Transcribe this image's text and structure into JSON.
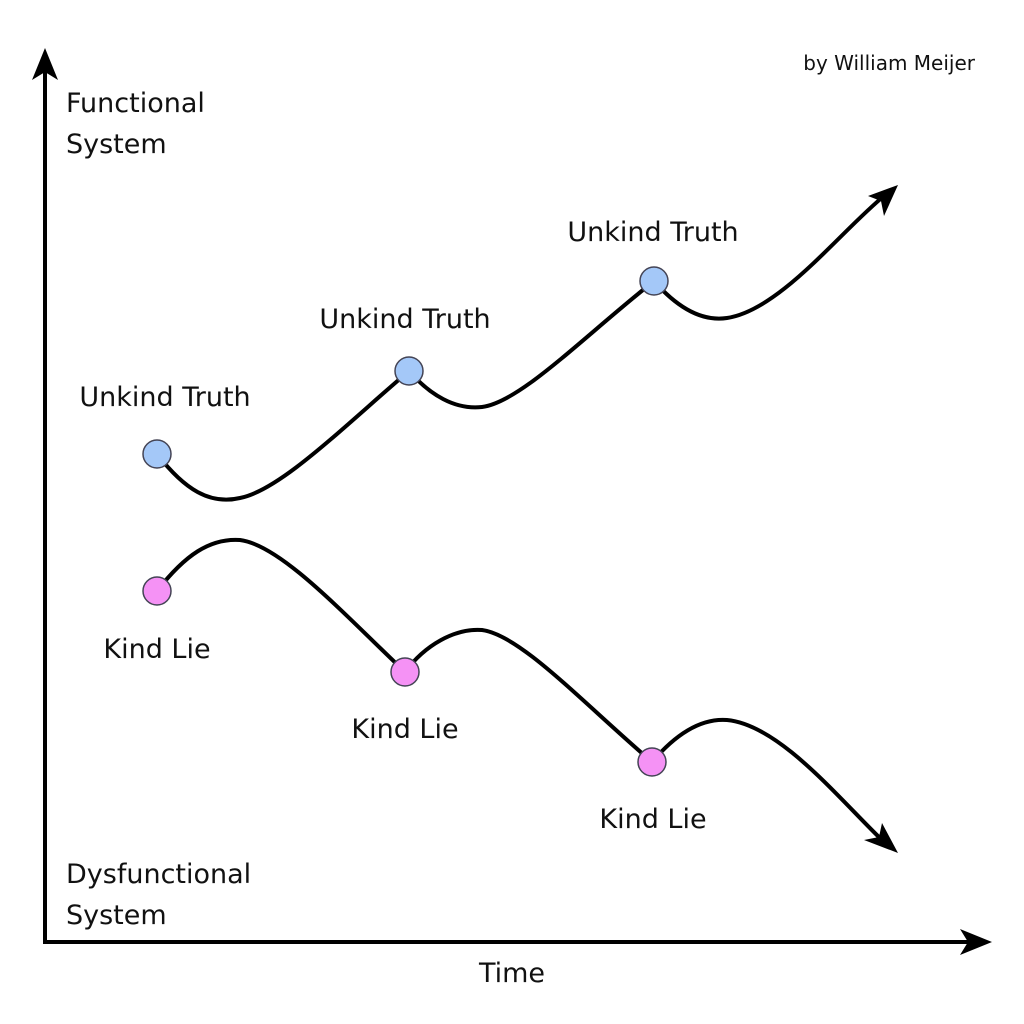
{
  "credit": "by William Meijer",
  "axes": {
    "y_top_label": [
      "Functional",
      "System"
    ],
    "y_bottom_label": [
      "Dysfunctional",
      "System"
    ],
    "x_label": "Time"
  },
  "upper_path": {
    "point_label": "Unkind Truth",
    "labels": [
      "Unkind Truth",
      "Unkind Truth",
      "Unkind Truth"
    ],
    "color": "#a4c8f8"
  },
  "lower_path": {
    "point_label": "Kind Lie",
    "labels": [
      "Kind Lie",
      "Kind Lie",
      "Kind Lie"
    ],
    "color": "#f592f5"
  }
}
